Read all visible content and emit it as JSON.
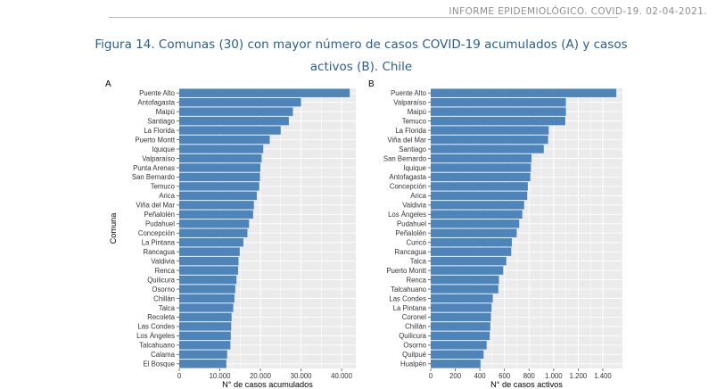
{
  "header": {
    "text": "INFORME EPIDEMIOLÓGICO. COVID-19. 02-04-2021."
  },
  "caption": {
    "line1": "Figura 14. Comunas (30) con mayor número de casos COVID-19 acumulados (A) y casos",
    "line2": "activos (B). Chile"
  },
  "colors": {
    "bar": "#4d85ba",
    "panel_bg": "#ebebeb",
    "grid": "#ffffff"
  },
  "chart_data": [
    {
      "type": "bar",
      "orientation": "horizontal",
      "panel_label": "A",
      "xlabel": "N° de casos acumulados",
      "ylabel": "Comuna",
      "xlim": [
        0,
        43500
      ],
      "x_ticks": [
        0,
        10000,
        20000,
        30000,
        40000
      ],
      "x_tick_labels": [
        "0",
        "10.000",
        "20.000",
        "30.000",
        "40.000"
      ],
      "grid": true,
      "categories": [
        "Puente Alto",
        "Antofagasta",
        "Maipú",
        "Santiago",
        "La Florida",
        "Puerto Montt",
        "Iquique",
        "Valparaíso",
        "Punta Arenas",
        "San Bernardo",
        "Temuco",
        "Arica",
        "Viña del Mar",
        "Peñalolén",
        "Pudahuel",
        "Concepción",
        "La Pintana",
        "Rancagua",
        "Valdivia",
        "Renca",
        "Quilicura",
        "Osorno",
        "Chillán",
        "Talca",
        "Recoleta",
        "Las Condes",
        "Los Ángeles",
        "Talcahuano",
        "Calama",
        "El Bosque"
      ],
      "values": [
        42000,
        30000,
        28000,
        27000,
        25000,
        22300,
        20700,
        20300,
        20000,
        19900,
        19700,
        19100,
        18400,
        18200,
        17200,
        16800,
        15800,
        14900,
        14600,
        14500,
        14100,
        13800,
        13600,
        13300,
        12900,
        12800,
        12700,
        12600,
        11800,
        11600
      ]
    },
    {
      "type": "bar",
      "orientation": "horizontal",
      "panel_label": "B",
      "xlabel": "N° de casos activos",
      "ylabel": "",
      "xlim": [
        0,
        1560
      ],
      "x_ticks": [
        0,
        200,
        400,
        600,
        800,
        1000,
        1200,
        1400
      ],
      "x_tick_labels": [
        "0",
        "200",
        "400",
        "600",
        "800",
        "1.000",
        "1.200",
        "1.400"
      ],
      "grid": true,
      "categories": [
        "Puente Alto",
        "Valparaíso",
        "Maipú",
        "Temuco",
        "La Florida",
        "Viña del Mar",
        "Santiago",
        "San Bernardo",
        "Iquique",
        "Antofagasta",
        "Concepción",
        "Arica",
        "Valdivia",
        "Los Ángeles",
        "Pudahuel",
        "Peñalolén",
        "Curicó",
        "Rancagua",
        "Talca",
        "Puerto Montt",
        "Renca",
        "Talcahuano",
        "Las Condes",
        "La Pintana",
        "Coronel",
        "Chillán",
        "Quilicura",
        "Osorno",
        "Quilpué",
        "Hualpén"
      ],
      "values": [
        1510,
        1100,
        1100,
        1095,
        960,
        955,
        920,
        820,
        815,
        810,
        790,
        785,
        760,
        745,
        720,
        700,
        660,
        655,
        615,
        590,
        555,
        550,
        505,
        495,
        490,
        485,
        480,
        455,
        430,
        405
      ]
    }
  ]
}
